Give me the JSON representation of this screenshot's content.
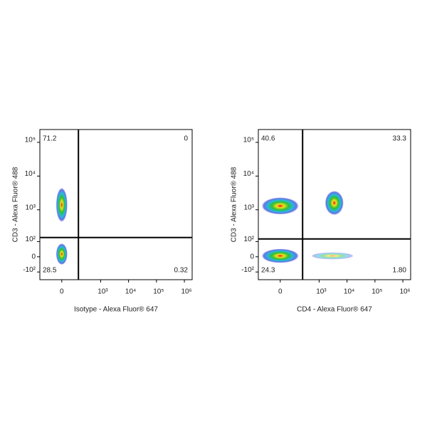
{
  "chart_data": [
    {
      "type": "scatter",
      "xlabel": "Isotype - Alexa Fluor® 647",
      "ylabel": "CD3 - Alexa Fluor® 488",
      "xlim": [
        -240,
        1900000
      ],
      "ylim": [
        -185,
        240000
      ],
      "xticks": [
        0,
        {
          "value": 1000,
          "label": "10³"
        },
        {
          "value": 10000,
          "label": "10⁴"
        },
        {
          "value": 100000,
          "label": "10⁵"
        },
        {
          "value": 1000000,
          "label": "10⁶"
        }
      ],
      "yticks": [
        {
          "value": -100,
          "label": "-10²"
        },
        0,
        {
          "value": 100,
          "label": "10²"
        },
        {
          "value": 1000,
          "label": "10³"
        },
        {
          "value": 10000,
          "label": "10⁴"
        },
        {
          "value": 100000,
          "label": "10⁵"
        }
      ],
      "gate": {
        "x": 150,
        "y": 140
      },
      "quadrant_values": [
        71.2,
        0,
        28.5,
        0.32
      ],
      "populations": [
        {
          "x": 0,
          "y": 1400
        },
        {
          "x": 0,
          "y": 15
        }
      ]
    },
    {
      "type": "scatter",
      "xlabel": "CD4 - Alexa Fluor® 647",
      "ylabel": "CD3 - Alexa Fluor® 488",
      "xlim": [
        -240,
        1900000
      ],
      "ylim": [
        -185,
        240000
      ],
      "xticks": [
        0,
        {
          "value": 1000,
          "label": "10³"
        },
        {
          "value": 10000,
          "label": "10⁴"
        },
        {
          "value": 100000,
          "label": "10⁵"
        },
        {
          "value": 1000000,
          "label": "10⁶"
        }
      ],
      "yticks": [
        {
          "value": -100,
          "label": "-10²"
        },
        0,
        {
          "value": 100,
          "label": "10²"
        },
        {
          "value": 1000,
          "label": "10³"
        },
        {
          "value": 10000,
          "label": "10⁴"
        },
        {
          "value": 100000,
          "label": "10⁵"
        }
      ],
      "gate": {
        "x": 250,
        "y": 125
      },
      "quadrant_values": [
        40.6,
        33.3,
        24.3,
        1.8
      ],
      "value_labels": [
        "40.6",
        "33.3",
        "24.3",
        "1.80"
      ],
      "populations": [
        {
          "x": 0,
          "y": 1300
        },
        {
          "x": 3500,
          "y": 1600
        },
        {
          "x": 0,
          "y": 5
        },
        {
          "x": 3000,
          "y": 5
        }
      ]
    }
  ]
}
